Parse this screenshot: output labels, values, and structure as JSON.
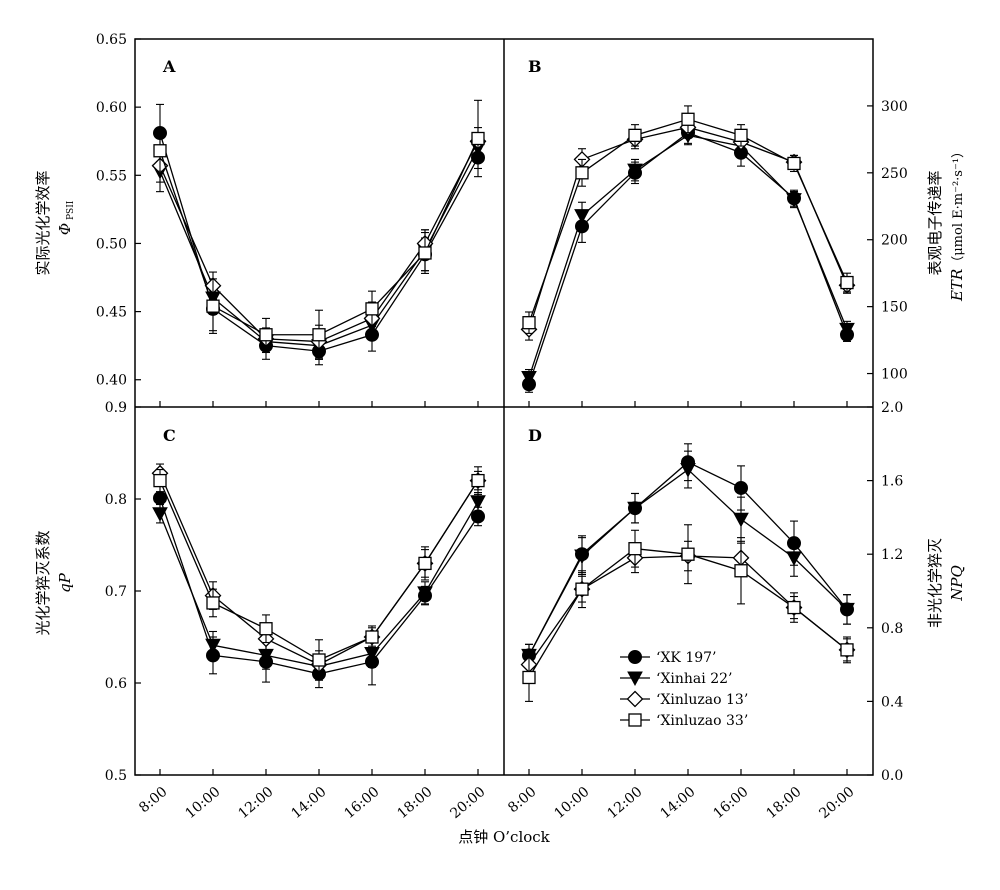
{
  "xlabel": "点钟 O’clock",
  "x_ticks": [
    "8:00",
    "10:00",
    "12:00",
    "14:00",
    "16:00",
    "18:00",
    "20:00"
  ],
  "legend": {
    "placement": "lower-right of panel D",
    "entries": [
      {
        "label": "‘XK 197’",
        "marker": "filled-circle"
      },
      {
        "label": "‘Xinhai 22’",
        "marker": "filled-triangle-down"
      },
      {
        "label": "‘Xinluzao 13’",
        "marker": "open-diamond"
      },
      {
        "label": "‘Xinluzao 33’",
        "marker": "open-square"
      }
    ]
  },
  "chart_data": [
    {
      "panel": "A",
      "type": "line",
      "ylabel_line1": "实际光化学效率",
      "ylabel_line2": "Φ",
      "ylabel_sub": "PSII",
      "y_ticks": [
        "0.40",
        "0.45",
        "0.50",
        "0.55",
        "0.60",
        "0.65"
      ],
      "ylim": [
        0.38,
        0.65
      ],
      "x": [
        "8:00",
        "10:00",
        "12:00",
        "14:00",
        "16:00",
        "18:00",
        "20:00"
      ],
      "series": [
        {
          "name": "‘XK 197’",
          "values": [
            0.581,
            0.452,
            0.425,
            0.421,
            0.433,
            0.492,
            0.563
          ],
          "err": [
            0.021,
            0.016,
            0.01,
            0.01,
            0.012,
            0.012,
            0.008
          ]
        },
        {
          "name": "‘Xinhai 22’",
          "values": [
            0.553,
            0.46,
            0.428,
            0.425,
            0.44,
            0.495,
            0.57
          ],
          "err": [
            0.015,
            0.012,
            0.008,
            0.01,
            0.01,
            0.015,
            0.01
          ]
        },
        {
          "name": "‘Xinluzao 13’",
          "values": [
            0.557,
            0.469,
            0.43,
            0.428,
            0.445,
            0.5,
            0.575
          ],
          "err": [
            0.012,
            0.01,
            0.008,
            0.012,
            0.012,
            0.01,
            0.01
          ]
        },
        {
          "name": "‘Xinluzao 33’",
          "values": [
            0.568,
            0.454,
            0.433,
            0.433,
            0.452,
            0.493,
            0.577
          ],
          "err": [
            0.015,
            0.02,
            0.012,
            0.018,
            0.013,
            0.015,
            0.028
          ]
        }
      ]
    },
    {
      "panel": "B",
      "type": "line",
      "ylabel_line1": "表观电子传递率",
      "ylabel_sym": "ETR",
      "ylabel_unit": "（μmol E·m⁻²·s⁻¹）",
      "y_ticks": [
        "100",
        "150",
        "200",
        "250",
        "300"
      ],
      "ylim": [
        75,
        350
      ],
      "x": [
        "8:00",
        "10:00",
        "12:00",
        "14:00",
        "16:00",
        "18:00",
        "20:00"
      ],
      "series": [
        {
          "name": "‘XK 197’",
          "values": [
            92,
            210,
            250,
            280,
            265,
            231,
            129
          ],
          "err": [
            6,
            12,
            8,
            8,
            10,
            6,
            5
          ]
        },
        {
          "name": "‘Xinhai 22’",
          "values": [
            97,
            218,
            252,
            278,
            270,
            230,
            133
          ],
          "err": [
            6,
            10,
            8,
            7,
            8,
            6,
            6
          ]
        },
        {
          "name": "‘Xinluzao 13’",
          "values": [
            133,
            260,
            275,
            284,
            273,
            258,
            166
          ],
          "err": [
            8,
            8,
            7,
            8,
            7,
            5,
            6
          ]
        },
        {
          "name": "‘Xinluzao 33’",
          "values": [
            138,
            250,
            278,
            290,
            278,
            257,
            168
          ],
          "err": [
            8,
            10,
            8,
            10,
            8,
            6,
            7
          ]
        }
      ]
    },
    {
      "panel": "C",
      "type": "line",
      "ylabel_line1": "光化学猝灭系数",
      "ylabel_sym": "qP",
      "y_ticks": [
        "0.5",
        "0.6",
        "0.7",
        "0.8",
        "0.9"
      ],
      "ylim": [
        0.5,
        0.9
      ],
      "x": [
        "8:00",
        "10:00",
        "12:00",
        "14:00",
        "16:00",
        "18:00",
        "20:00"
      ],
      "series": [
        {
          "name": "‘XK 197’",
          "values": [
            0.801,
            0.63,
            0.623,
            0.61,
            0.623,
            0.695,
            0.781
          ],
          "err": [
            0.015,
            0.02,
            0.022,
            0.015,
            0.025,
            0.01,
            0.01
          ]
        },
        {
          "name": "‘Xinhai 22’",
          "values": [
            0.784,
            0.641,
            0.63,
            0.618,
            0.632,
            0.698,
            0.797
          ],
          "err": [
            0.01,
            0.015,
            0.015,
            0.012,
            0.015,
            0.012,
            0.01
          ]
        },
        {
          "name": "‘Xinluzao 13’",
          "values": [
            0.828,
            0.695,
            0.648,
            0.62,
            0.65,
            0.73,
            0.82
          ],
          "err": [
            0.01,
            0.015,
            0.012,
            0.015,
            0.01,
            0.015,
            0.01
          ]
        },
        {
          "name": "‘Xinluzao 33’",
          "values": [
            0.82,
            0.687,
            0.659,
            0.625,
            0.65,
            0.73,
            0.82
          ],
          "err": [
            0.012,
            0.015,
            0.015,
            0.022,
            0.012,
            0.018,
            0.015
          ]
        }
      ]
    },
    {
      "panel": "D",
      "type": "line",
      "ylabel_line1": "非光化学猝灭",
      "ylabel_sym": "NPQ",
      "y_ticks": [
        "0.0",
        "0.4",
        "0.8",
        "1.2",
        "1.6",
        "2.0"
      ],
      "ylim": [
        0.0,
        2.0
      ],
      "x": [
        "8:00",
        "10:00",
        "12:00",
        "14:00",
        "16:00",
        "18:00",
        "20:00"
      ],
      "series": [
        {
          "name": "‘XK 197’",
          "values": [
            0.65,
            1.2,
            1.45,
            1.7,
            1.56,
            1.26,
            0.9
          ],
          "err": [
            0.06,
            0.1,
            0.08,
            0.1,
            0.12,
            0.12,
            0.08
          ]
        },
        {
          "name": "‘Xinhai 22’",
          "values": [
            0.65,
            1.19,
            1.45,
            1.66,
            1.39,
            1.18,
            0.9
          ],
          "err": [
            0.06,
            0.1,
            0.08,
            0.1,
            0.12,
            0.1,
            0.08
          ]
        },
        {
          "name": "‘Xinluzao 13’",
          "values": [
            0.6,
            1.01,
            1.18,
            1.19,
            1.18,
            0.91,
            0.68
          ],
          "err": [
            0.08,
            0.07,
            0.08,
            0.08,
            0.08,
            0.06,
            0.06
          ]
        },
        {
          "name": "‘Xinluzao 33’",
          "values": [
            0.53,
            1.01,
            1.23,
            1.2,
            1.11,
            0.91,
            0.68
          ],
          "err": [
            0.13,
            0.1,
            0.1,
            0.16,
            0.18,
            0.08,
            0.07
          ]
        }
      ]
    }
  ]
}
